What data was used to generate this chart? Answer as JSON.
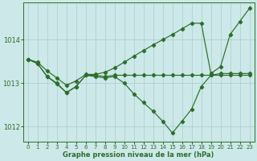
{
  "xlabel": "Graphe pression niveau de la mer (hPa)",
  "bg_color": "#cde8e8",
  "grid_color": "#aacccc",
  "line_color": "#2d6e2d",
  "yticks": [
    1012,
    1013,
    1014
  ],
  "xticks": [
    0,
    1,
    2,
    3,
    4,
    5,
    6,
    7,
    8,
    9,
    10,
    11,
    12,
    13,
    14,
    15,
    16,
    17,
    18,
    19,
    20,
    21,
    22,
    23
  ],
  "ylim": [
    1011.65,
    1014.85
  ],
  "xlim": [
    -0.5,
    23.5
  ],
  "line1_x": [
    0,
    1,
    2,
    3,
    4,
    5,
    6,
    7,
    8,
    9,
    10,
    11,
    12,
    13,
    14,
    15,
    16,
    17,
    18,
    19,
    20,
    21,
    22,
    23
  ],
  "line1_y": [
    1013.55,
    1013.45,
    1013.15,
    1013.0,
    1012.78,
    1012.92,
    1013.18,
    1013.18,
    1013.15,
    1013.18,
    1013.18,
    1013.18,
    1013.18,
    1013.18,
    1013.18,
    1013.18,
    1013.18,
    1013.18,
    1013.18,
    1013.18,
    1013.18,
    1013.18,
    1013.18,
    1013.18
  ],
  "line2_x": [
    0,
    1,
    2,
    3,
    4,
    5,
    6,
    7,
    8,
    9,
    10,
    11,
    12,
    13,
    14,
    15,
    16,
    17,
    18,
    19,
    20,
    21,
    22,
    23
  ],
  "line2_y": [
    1013.55,
    1013.45,
    1013.15,
    1012.98,
    1012.78,
    1012.92,
    1013.18,
    1013.15,
    1013.12,
    1013.15,
    1013.0,
    1012.75,
    1012.55,
    1012.35,
    1012.12,
    1011.85,
    1012.12,
    1012.4,
    1012.92,
    1013.18,
    1013.22,
    1013.22,
    1013.22,
    1013.22
  ],
  "line3_x": [
    0,
    1,
    2,
    3,
    4,
    5,
    6,
    7,
    8,
    9,
    10,
    11,
    12,
    13,
    14,
    15,
    16,
    17,
    18,
    19,
    20,
    21,
    22,
    23
  ],
  "line3_y": [
    1013.55,
    1013.48,
    1013.28,
    1013.12,
    1012.95,
    1013.05,
    1013.2,
    1013.2,
    1013.25,
    1013.35,
    1013.48,
    1013.62,
    1013.75,
    1013.88,
    1014.0,
    1014.12,
    1014.25,
    1014.38,
    1014.38,
    1013.22,
    1013.38,
    1014.12,
    1014.42,
    1014.72
  ]
}
